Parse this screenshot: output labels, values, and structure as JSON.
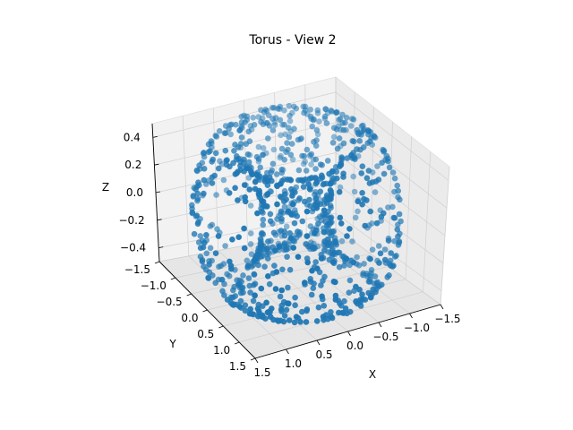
{
  "chart_data": {
    "type": "scatter",
    "title": "Torus - View 2",
    "xlabel": "X",
    "ylabel": "Y",
    "zlabel": "Z",
    "x_ticks": [
      "1.5",
      "1.0",
      "0.5",
      "0.0",
      "−0.5",
      "−1.0",
      "−1.5"
    ],
    "y_ticks": [
      "−1.5",
      "−1.0",
      "−0.5",
      "0.0",
      "0.5",
      "1.0",
      "1.5"
    ],
    "z_ticks": [
      "0.4",
      "0.2",
      "0.0",
      "−0.2",
      "−0.4"
    ],
    "xlim": [
      -1.5,
      1.5
    ],
    "ylim": [
      -1.5,
      1.5
    ],
    "zlim": [
      -0.5,
      0.5
    ],
    "torus": {
      "major_radius": 1.0,
      "minor_radius": 0.5,
      "n_points": 1000
    },
    "view": {
      "elev": 30,
      "azim": 60
    },
    "grid": true,
    "color": "#1f77b4"
  }
}
